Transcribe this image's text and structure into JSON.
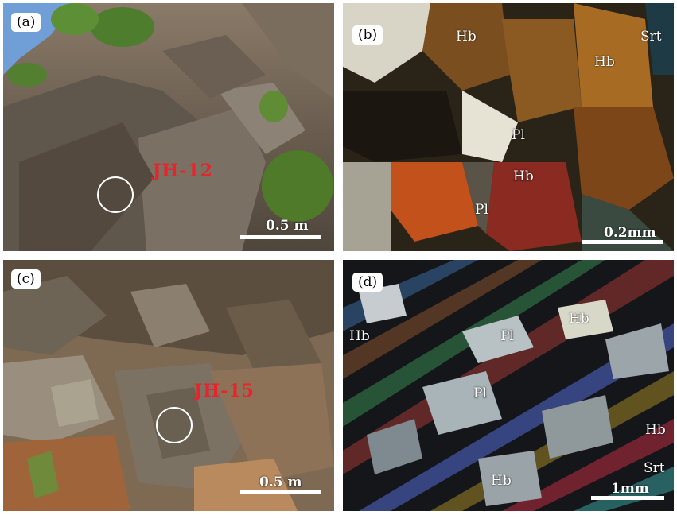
{
  "panels": {
    "a": {
      "label": "(a)",
      "sample": "JH-12",
      "scale": "0.5 m"
    },
    "b": {
      "label": "(b)",
      "minerals": {
        "hb1": "Hb",
        "hb2": "Hb",
        "hb3": "Hb",
        "srt": "Srt",
        "pl1": "Pl",
        "pl2": "Pl"
      },
      "scale": "0.2mm"
    },
    "c": {
      "label": "(c)",
      "sample": "JH-15",
      "scale": "0.5 m"
    },
    "d": {
      "label": "(d)",
      "minerals": {
        "hb1": "Hb",
        "hb2": "Hb",
        "hb3": "Hb",
        "hb4": "Hb",
        "pl1": "Pl",
        "pl2": "Pl",
        "srt": "Srt"
      },
      "scale": "1mm"
    }
  },
  "colors": {
    "sample_label": "#e8242a",
    "scale_bar": "#ffffff"
  }
}
